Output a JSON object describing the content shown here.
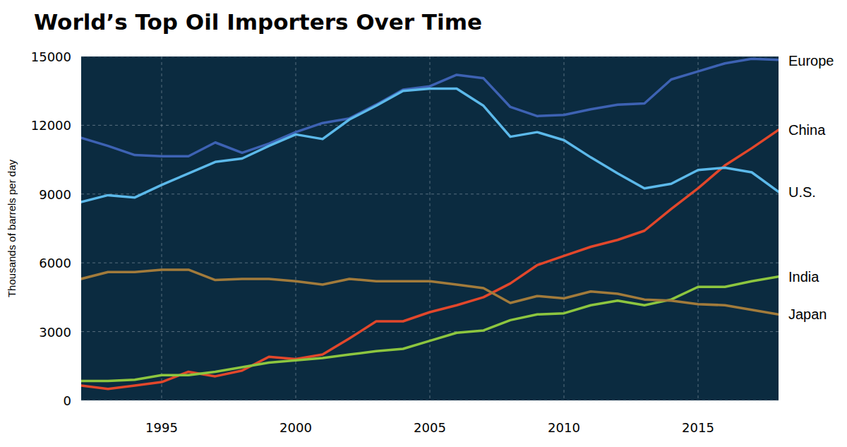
{
  "chart_data": {
    "type": "line",
    "title": "World’s Top Oil Importers Over Time",
    "y_label": "Thousands of barrels per day",
    "x": [
      1992,
      1993,
      1994,
      1995,
      1996,
      1997,
      1998,
      1999,
      2000,
      2001,
      2002,
      2003,
      2004,
      2005,
      2006,
      2007,
      2008,
      2009,
      2010,
      2011,
      2012,
      2013,
      2014,
      2015,
      2016,
      2017,
      2018
    ],
    "xlim": [
      1992,
      2018
    ],
    "xticks": [
      1995,
      2000,
      2005,
      2010,
      2015
    ],
    "ylim": [
      0,
      15000
    ],
    "yticks": [
      0,
      3000,
      6000,
      9000,
      12000,
      15000
    ],
    "grid": true,
    "series": [
      {
        "name": "Europe",
        "color": "#3d62b3",
        "values": [
          11450,
          11100,
          10700,
          10650,
          10650,
          11250,
          10800,
          11200,
          11700,
          12100,
          12300,
          12900,
          13550,
          13700,
          14200,
          14050,
          12800,
          12400,
          12450,
          12700,
          12900,
          12950,
          14000,
          14350,
          14700,
          14900,
          14850
        ]
      },
      {
        "name": "China",
        "color": "#e2472b",
        "values": [
          650,
          500,
          650,
          800,
          1250,
          1050,
          1300,
          1900,
          1800,
          2000,
          2700,
          3450,
          3450,
          3850,
          4150,
          4500,
          5100,
          5900,
          6300,
          6700,
          7000,
          7400,
          8350,
          9250,
          10250,
          11000,
          11800
        ]
      },
      {
        "name": "U.S.",
        "color": "#5cb9ea",
        "values": [
          8650,
          8950,
          8850,
          9400,
          9900,
          10400,
          10550,
          11100,
          11600,
          11400,
          12250,
          12850,
          13500,
          13600,
          13600,
          12850,
          11500,
          11700,
          11350,
          10600,
          9900,
          9250,
          9450,
          10050,
          10150,
          9950,
          9100
        ]
      },
      {
        "name": "India",
        "color": "#8dc63f",
        "values": [
          850,
          850,
          900,
          1100,
          1100,
          1250,
          1450,
          1650,
          1750,
          1850,
          2000,
          2150,
          2250,
          2600,
          2950,
          3050,
          3500,
          3750,
          3800,
          4150,
          4350,
          4150,
          4400,
          4950,
          4950,
          5200,
          5400
        ]
      },
      {
        "name": "Japan",
        "color": "#a27b3b",
        "values": [
          5300,
          5600,
          5600,
          5700,
          5700,
          5250,
          5300,
          5300,
          5200,
          5050,
          5300,
          5200,
          5200,
          5200,
          5050,
          4900,
          4250,
          4550,
          4450,
          4750,
          4650,
          4400,
          4350,
          4200,
          4150,
          3950,
          3750
        ]
      }
    ]
  }
}
